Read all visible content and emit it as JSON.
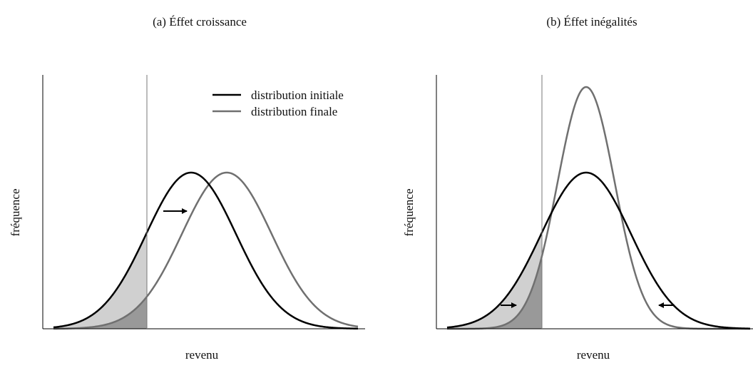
{
  "panels": [
    {
      "title": "(a) Éffet croissance",
      "ylabel": "fréquence",
      "xlabel": "revenu",
      "legend": [
        "distribution initiale",
        "distribution finale"
      ]
    },
    {
      "title": "(b) Éffet inégalités",
      "ylabel": "fréquence",
      "xlabel": "revenu"
    }
  ]
}
